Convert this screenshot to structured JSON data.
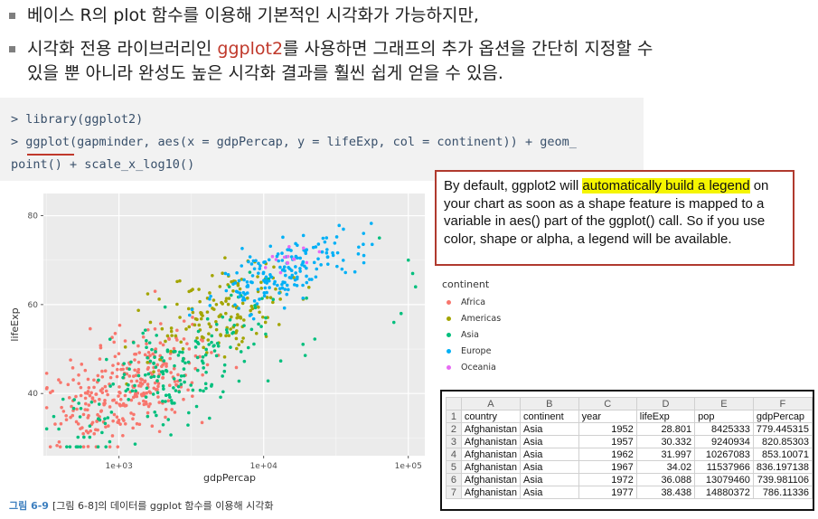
{
  "bullets": [
    {
      "text": "베이스 R의 plot 함수를 이용해 기본적인 시각화가 가능하지만,"
    },
    {
      "pre": "시각화 전용 라이브러리인 ",
      "highlight": "ggplot2",
      "post": "를 사용하면 그래프의 추가 옵션을 간단히 지정할 수",
      "line2": "있을 뿐 아니라 완성도 높은 시각화 결과를 훨씬 쉽게 얻을 수 있음."
    }
  ],
  "code": {
    "line1": "> library(ggplot2)",
    "line2": "> ggplot(gapminder, aes(x = gdpPercap, y = lifeExp, col = continent)) + geom_",
    "line3": "point() + scale_x_log10()"
  },
  "callout": {
    "pre": "By default, ggplot2 will ",
    "highlight": "automatically build a legend",
    "post": " on your chart as soon as a shape feature is mapped to a variable in aes() part of the ggplot() call. So if you use color, shape or alpha, a legend will be available."
  },
  "chart_data": {
    "type": "scatter",
    "xlabel": "gdpPercap",
    "ylabel": "lifeExp",
    "x_scale": "log10",
    "xlim": [
      300,
      130000
    ],
    "ylim": [
      26,
      85
    ],
    "x_ticks": [
      "1e+03",
      "1e+04",
      "1e+05"
    ],
    "y_ticks": [
      "40",
      "60",
      "80"
    ],
    "grid": true,
    "legend": {
      "title": "continent",
      "position": "right"
    },
    "series": [
      {
        "name": "Africa",
        "color": "#F8766D"
      },
      {
        "name": "Americas",
        "color": "#A3A500"
      },
      {
        "name": "Asia",
        "color": "#00BF7D"
      },
      {
        "name": "Europe",
        "color": "#00B0F6"
      },
      {
        "name": "Oceania",
        "color": "#E76BF3"
      }
    ]
  },
  "caption": {
    "label": "그림 6-9",
    "text": "[그림 6-8]의 데이터를 ggplot 함수를 이용해 시각화"
  },
  "sheet": {
    "col_letters": [
      "A",
      "B",
      "C",
      "D",
      "E",
      "F"
    ],
    "rows": [
      [
        "country",
        "continent",
        "year",
        "lifeExp",
        "pop",
        "gdpPercap"
      ],
      [
        "Afghanistan",
        "Asia",
        "1952",
        "28.801",
        "8425333",
        "779.445315"
      ],
      [
        "Afghanistan",
        "Asia",
        "1957",
        "30.332",
        "9240934",
        "820.85303"
      ],
      [
        "Afghanistan",
        "Asia",
        "1962",
        "31.997",
        "10267083",
        "853.10071"
      ],
      [
        "Afghanistan",
        "Asia",
        "1967",
        "34.02",
        "11537966",
        "836.197138"
      ],
      [
        "Afghanistan",
        "Asia",
        "1972",
        "36.088",
        "13079460",
        "739.981106"
      ],
      [
        "Afghanistan",
        "Asia",
        "1977",
        "38.438",
        "14880372",
        "786.11336"
      ]
    ]
  }
}
